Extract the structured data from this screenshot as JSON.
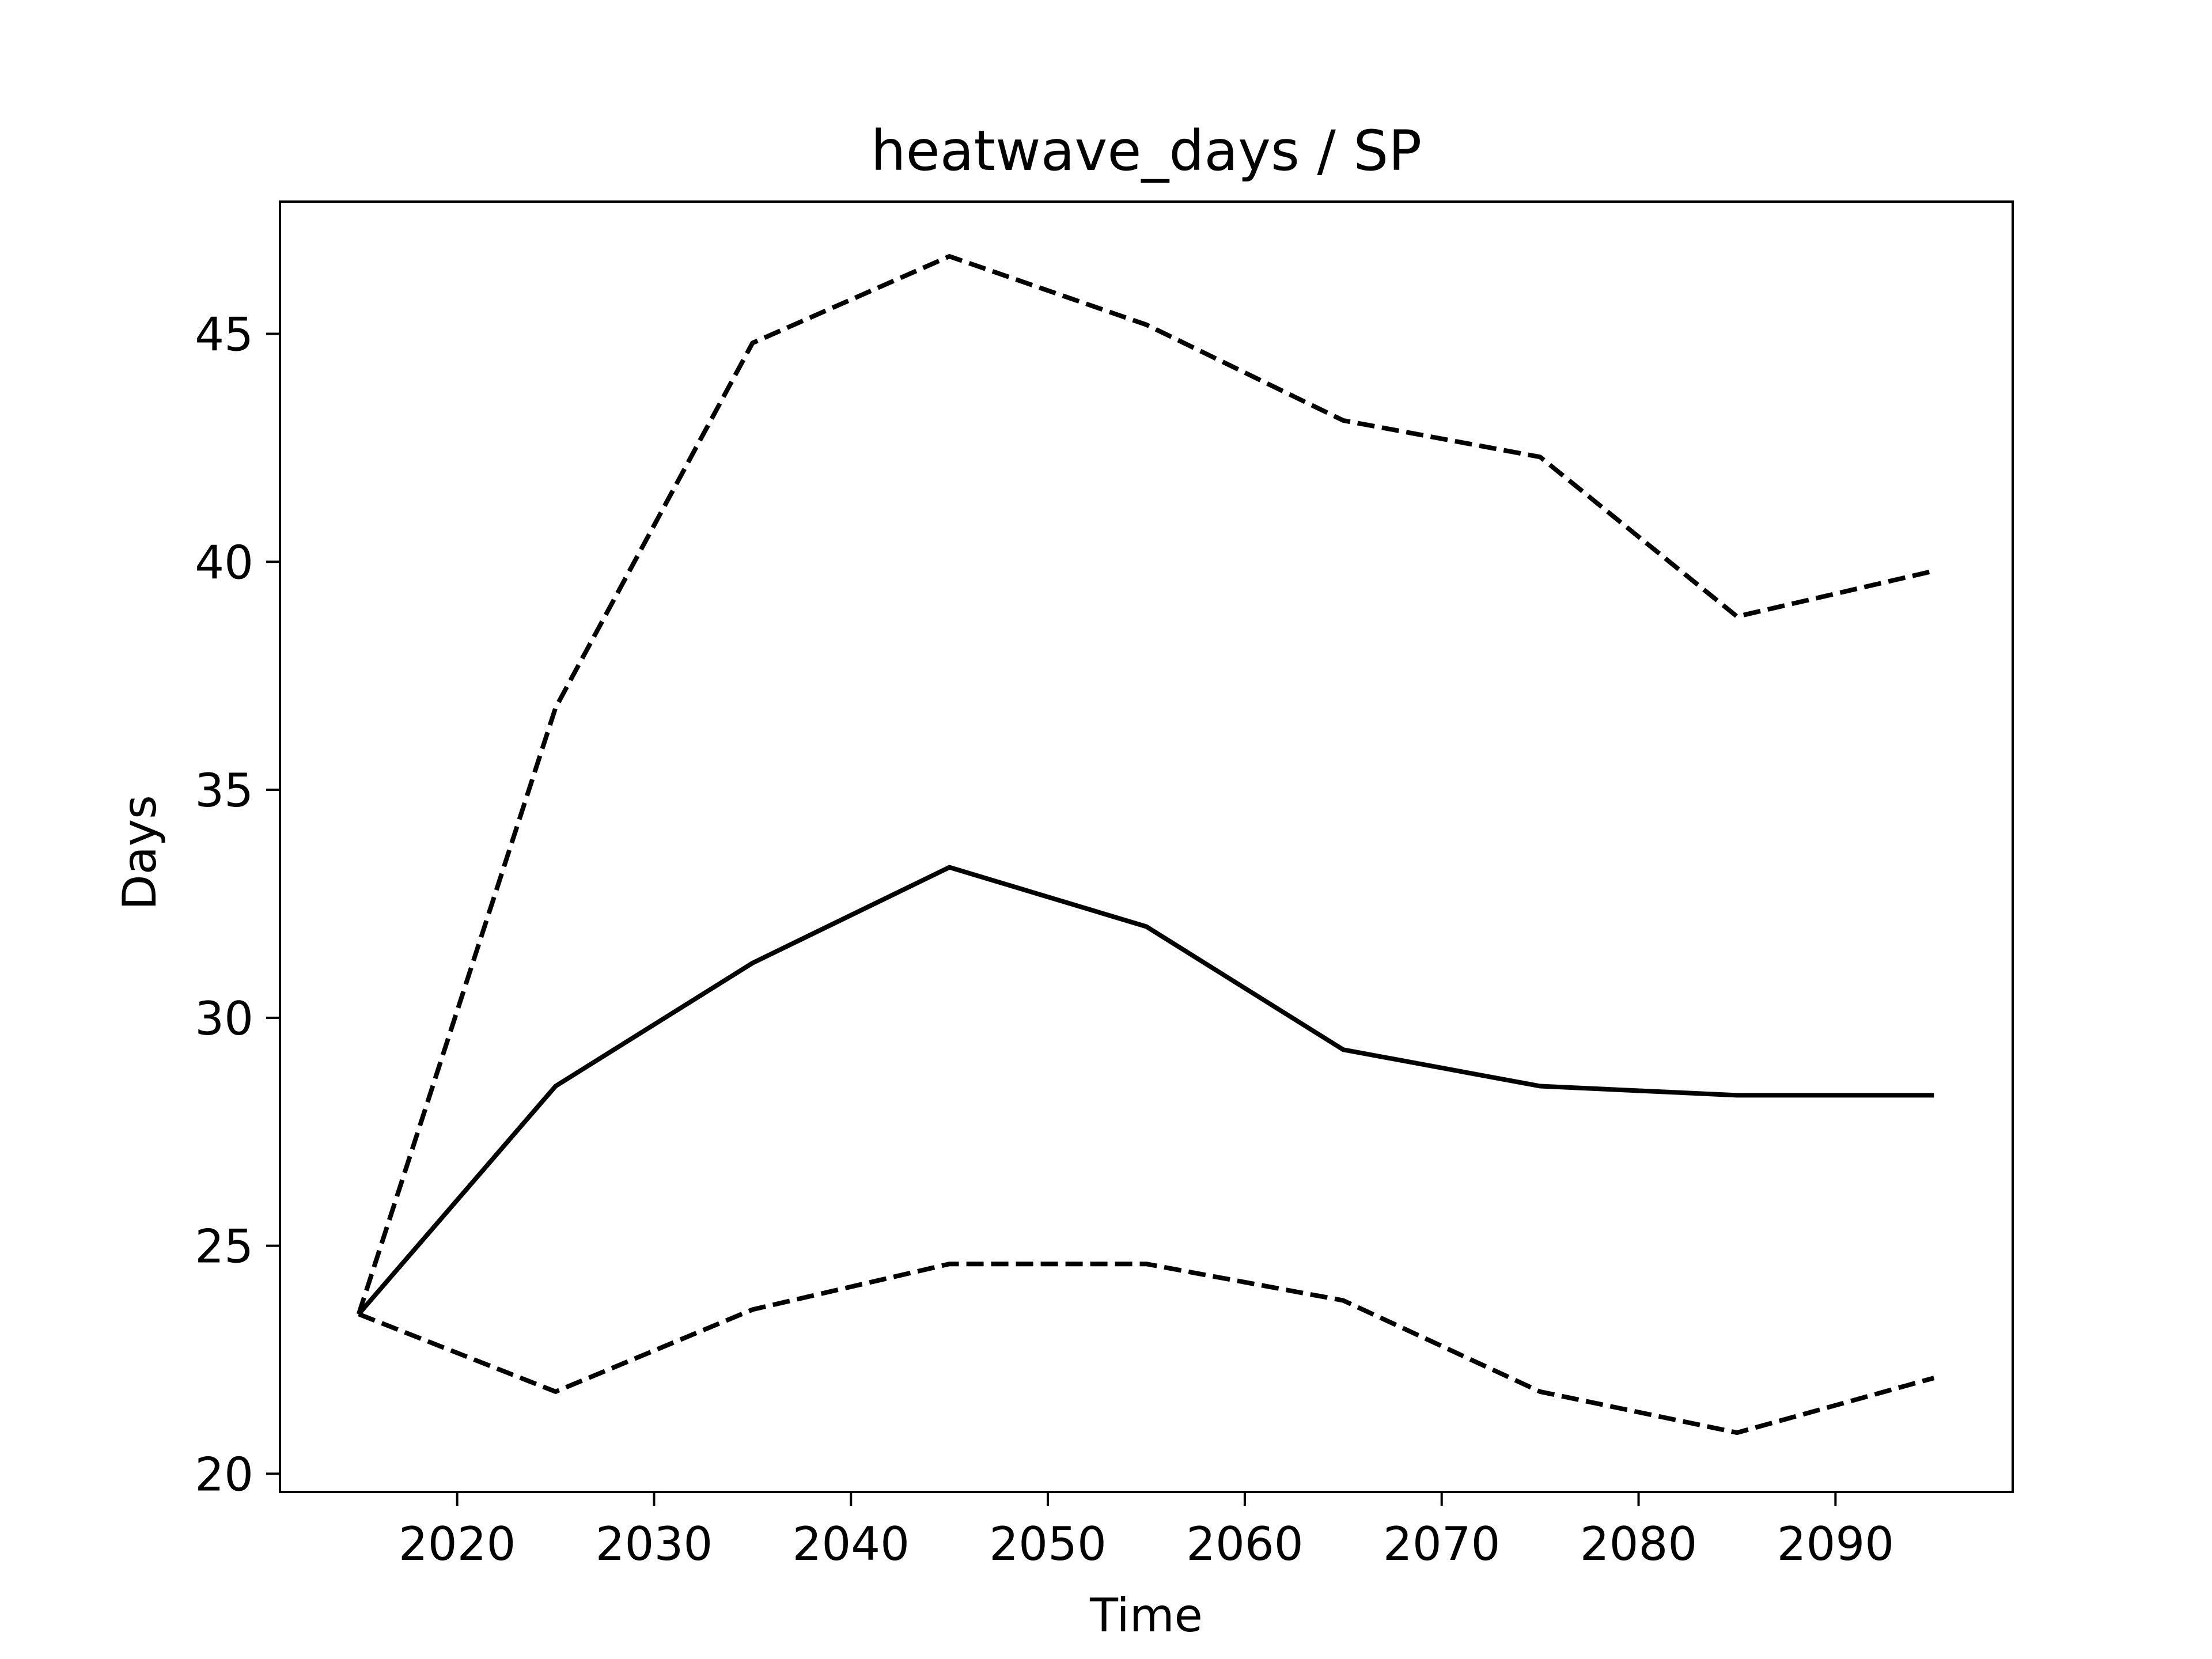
{
  "chart_data": {
    "type": "line",
    "title": "heatwave_days / SP",
    "xlabel": "Time",
    "ylabel": "Days",
    "x": [
      2015,
      2025,
      2035,
      2045,
      2055,
      2065,
      2075,
      2085,
      2095
    ],
    "xlim": [
      2011,
      2099
    ],
    "ylim": [
      19.6,
      47.9
    ],
    "xticks": [
      2020,
      2030,
      2040,
      2050,
      2060,
      2070,
      2080,
      2090
    ],
    "yticks": [
      20,
      25,
      30,
      35,
      40,
      45
    ],
    "grid": false,
    "series": [
      {
        "style": "solid",
        "values": [
          23.5,
          28.5,
          31.2,
          33.3,
          32.0,
          29.3,
          28.5,
          28.3,
          28.3
        ]
      },
      {
        "style": "dashed",
        "values": [
          23.5,
          36.8,
          44.8,
          46.7,
          45.2,
          43.1,
          42.3,
          38.8,
          39.8
        ]
      },
      {
        "style": "dashed",
        "values": [
          23.5,
          21.8,
          23.6,
          24.6,
          24.6,
          23.8,
          21.8,
          20.9,
          22.1
        ]
      }
    ]
  }
}
